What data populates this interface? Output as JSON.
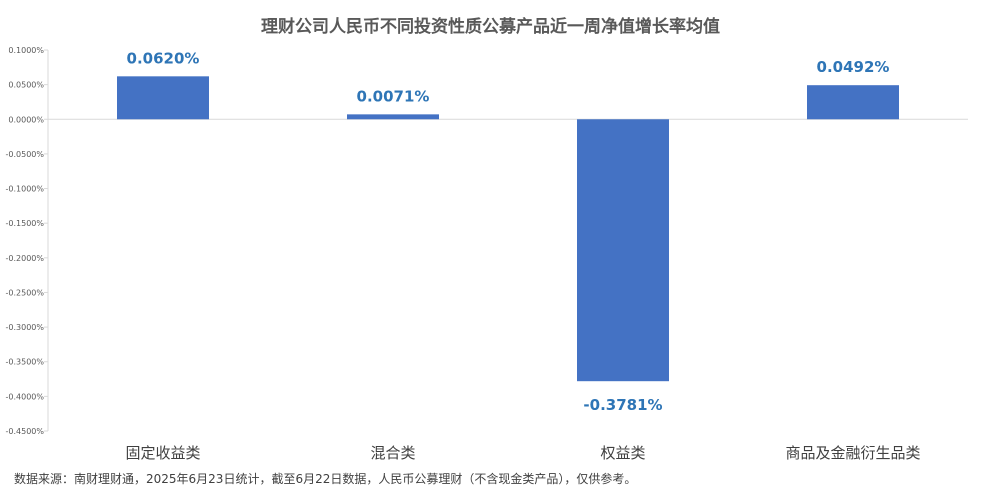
{
  "chart_data": {
    "type": "bar",
    "title": "理财公司人民币不同投资性质公募产品近一周净值增长率均值",
    "categories": [
      "固定收益类",
      "混合类",
      "权益类",
      "商品及金融衍生品类"
    ],
    "values": [
      0.062,
      0.0071,
      -0.3781,
      0.0492
    ],
    "data_labels": [
      "0.0620%",
      "0.0071%",
      "-0.3781%",
      "0.0492%"
    ],
    "ylim": [
      -0.45,
      0.1
    ],
    "yticks": [
      0.1,
      0.05,
      0.0,
      -0.05,
      -0.1,
      -0.15,
      -0.2,
      -0.25,
      -0.3,
      -0.35,
      -0.4,
      -0.45
    ],
    "ytick_labels": [
      "0.1000%",
      "0.0500%",
      "0.0000%",
      "-0.0500%",
      "-0.1000%",
      "-0.1500%",
      "-0.2000%",
      "-0.2500%",
      "-0.3000%",
      "-0.3500%",
      "-0.4000%",
      "-0.4500%"
    ],
    "xlabel": "",
    "ylabel": "",
    "grid": false,
    "legend": "none",
    "colors": {
      "bar": "#4472C4",
      "data_label": "#2E75B6",
      "axis_line": "#D9D9D9",
      "tick_text": "#595959",
      "category_text": "#404040"
    }
  },
  "footnote": "数据来源：南财理财通，2025年6月23日统计，截至6月22日数据，人民币公募理财（不含现金类产品），仅供参考。"
}
